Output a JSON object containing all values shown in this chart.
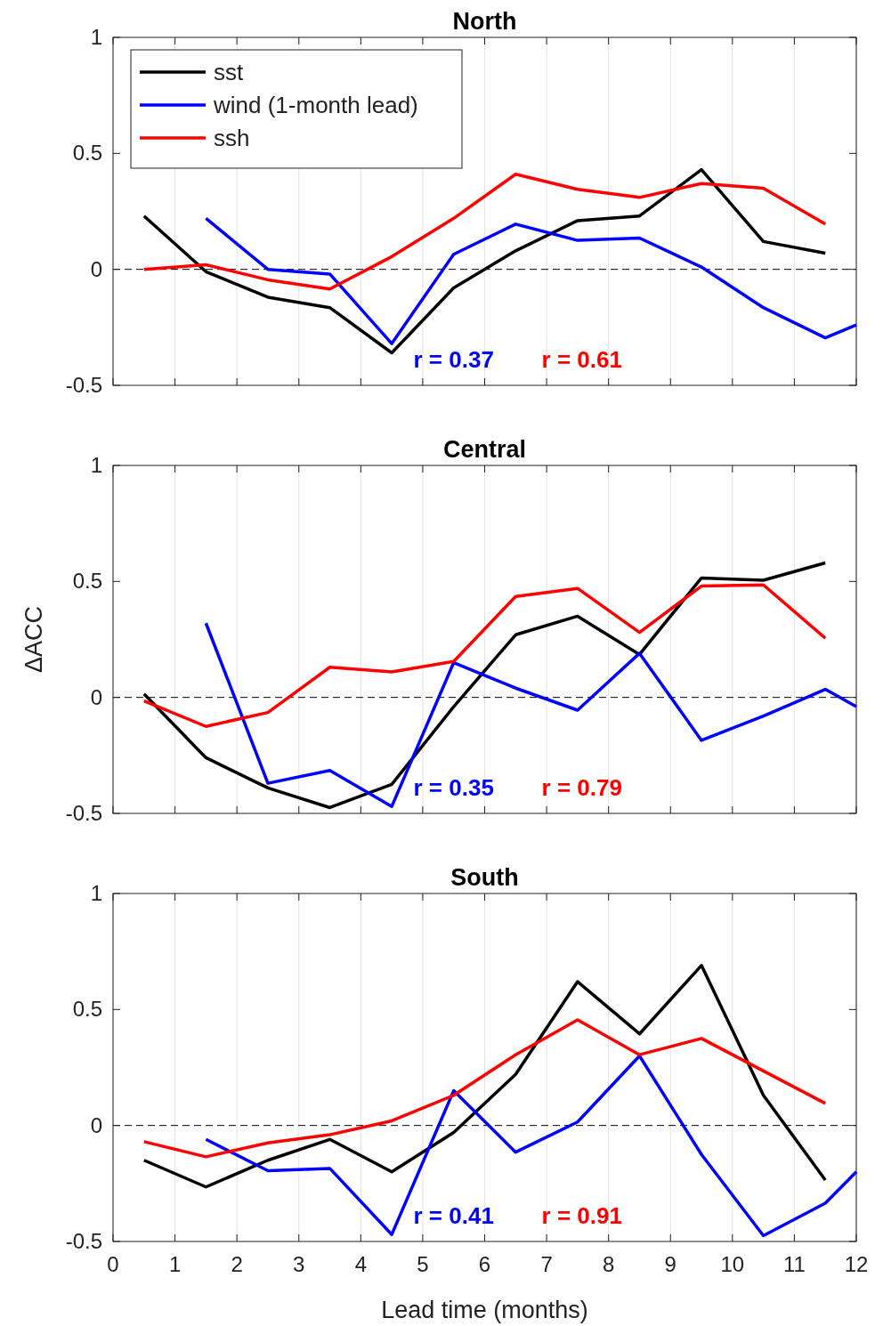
{
  "chart_data": [
    {
      "type": "line",
      "title": "North",
      "xlim": [
        0,
        12
      ],
      "xticks": [
        0,
        1,
        2,
        3,
        4,
        5,
        6,
        7,
        8,
        9,
        10,
        11,
        12
      ],
      "ylim": [
        -0.5,
        1
      ],
      "yticks": [
        -0.5,
        0,
        0.5,
        1
      ],
      "grid": "x",
      "tick_labels": "y",
      "legend": "top left",
      "line_style": "solid",
      "ref_lines": [
        {
          "axis": "y",
          "value": 0,
          "line_style": "dashed",
          "color": "#000000"
        }
      ],
      "annotations": [
        "r = 0.37",
        "r = 0.61"
      ],
      "series": [
        {
          "name": "sst",
          "color": "#000000",
          "x": [
            0.5,
            1.5,
            2.5,
            3.5,
            4.5,
            5.5,
            6.5,
            7.5,
            8.5,
            9.5,
            10.5,
            11.5
          ],
          "values": [
            0.23,
            -0.01,
            -0.12,
            -0.165,
            -0.36,
            -0.08,
            0.08,
            0.21,
            0.23,
            0.43,
            0.12,
            0.07
          ]
        },
        {
          "name": "wind (1-month lead)",
          "color": "#0000ff",
          "x": [
            1.5,
            2.5,
            3.5,
            4.5,
            5.5,
            6.5,
            7.5,
            8.5,
            9.5,
            10.5,
            11.5,
            12
          ],
          "values": [
            0.22,
            0,
            -0.02,
            -0.32,
            0.065,
            0.195,
            0.125,
            0.135,
            0.01,
            -0.165,
            -0.295,
            -0.24
          ]
        },
        {
          "name": "ssh",
          "color": "#ff0000",
          "x": [
            0.5,
            1.5,
            2.5,
            3.5,
            4.5,
            5.5,
            6.5,
            7.5,
            8.5,
            9.5,
            10.5,
            11.5
          ],
          "values": [
            0,
            0.02,
            -0.045,
            -0.085,
            0.055,
            0.22,
            0.41,
            0.345,
            0.31,
            0.37,
            0.35,
            0.195
          ]
        }
      ]
    },
    {
      "type": "line",
      "title": "Central",
      "ylabel": "ΔACC",
      "xlim": [
        0,
        12
      ],
      "xticks": [
        0,
        1,
        2,
        3,
        4,
        5,
        6,
        7,
        8,
        9,
        10,
        11,
        12
      ],
      "ylim": [
        -0.5,
        1
      ],
      "yticks": [
        -0.5,
        0,
        0.5,
        1
      ],
      "grid": "x",
      "tick_labels": "y",
      "line_style": "solid",
      "ref_lines": [
        {
          "axis": "y",
          "value": 0,
          "line_style": "dashed",
          "color": "#000000"
        }
      ],
      "annotations": [
        "r = 0.35",
        "r = 0.79"
      ],
      "series": [
        {
          "color": "#000000",
          "x": [
            0.5,
            1.5,
            2.5,
            3.5,
            4.5,
            5.5,
            6.5,
            7.5,
            8.5,
            9.5,
            10.5,
            11.5
          ],
          "values": [
            0.015,
            -0.26,
            -0.39,
            -0.475,
            -0.375,
            -0.04,
            0.27,
            0.35,
            0.185,
            0.515,
            0.505,
            0.58
          ]
        },
        {
          "color": "#0000ff",
          "x": [
            1.5,
            2.5,
            3.5,
            4.5,
            5.5,
            6.5,
            7.5,
            8.5,
            9.5,
            10.5,
            11.5,
            12
          ],
          "values": [
            0.32,
            -0.37,
            -0.315,
            -0.47,
            0.15,
            0.04,
            -0.055,
            0.19,
            -0.185,
            -0.08,
            0.035,
            -0.04
          ]
        },
        {
          "color": "#ff0000",
          "x": [
            0.5,
            1.5,
            2.5,
            3.5,
            4.5,
            5.5,
            6.5,
            7.5,
            8.5,
            9.5,
            10.5,
            11.5
          ],
          "values": [
            -0.015,
            -0.125,
            -0.065,
            0.13,
            0.11,
            0.155,
            0.435,
            0.47,
            0.28,
            0.48,
            0.485,
            0.255
          ]
        }
      ]
    },
    {
      "type": "line",
      "title": "South",
      "xlabel": "Lead time (months)",
      "xlim": [
        0,
        12
      ],
      "xticks": [
        0,
        1,
        2,
        3,
        4,
        5,
        6,
        7,
        8,
        9,
        10,
        11,
        12
      ],
      "ylim": [
        -0.5,
        1
      ],
      "yticks": [
        -0.5,
        0,
        0.5,
        1
      ],
      "grid": "x",
      "line_style": "solid",
      "ref_lines": [
        {
          "axis": "y",
          "value": 0,
          "line_style": "dashed",
          "color": "#000000"
        }
      ],
      "annotations": [
        "r = 0.41",
        "r = 0.91"
      ],
      "series": [
        {
          "color": "#000000",
          "x": [
            0.5,
            1.5,
            2.5,
            3.5,
            4.5,
            5.5,
            6.5,
            7.5,
            8.5,
            9.5,
            10.5,
            11.5
          ],
          "values": [
            -0.15,
            -0.265,
            -0.15,
            -0.06,
            -0.2,
            -0.03,
            0.22,
            0.62,
            0.395,
            0.69,
            0.13,
            -0.235
          ]
        },
        {
          "color": "#0000ff",
          "x": [
            1.5,
            2.5,
            3.5,
            4.5,
            5.5,
            6.5,
            7.5,
            8.5,
            9.5,
            10.5,
            11.5,
            12
          ],
          "values": [
            -0.06,
            -0.195,
            -0.185,
            -0.47,
            0.15,
            -0.115,
            0.015,
            0.3,
            -0.125,
            -0.475,
            -0.335,
            -0.2
          ]
        },
        {
          "color": "#ff0000",
          "x": [
            0.5,
            1.5,
            2.5,
            3.5,
            4.5,
            5.5,
            6.5,
            7.5,
            8.5,
            9.5,
            10.5,
            11.5
          ],
          "values": [
            -0.07,
            -0.135,
            -0.075,
            -0.04,
            0.02,
            0.13,
            0.305,
            0.455,
            0.305,
            0.375,
            0.235,
            0.095
          ]
        }
      ]
    }
  ]
}
